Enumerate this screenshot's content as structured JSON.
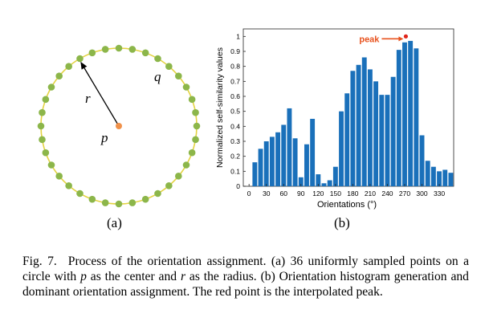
{
  "figure_a": {
    "label": "(a)",
    "center_label": "p",
    "radius_label": "r",
    "circle_label": "q",
    "num_points": 36,
    "colors": {
      "circle": "#e3d341",
      "points": "#8cb64a",
      "center": "#f0914a",
      "arrow": "#000000"
    }
  },
  "figure_b": {
    "label": "(b)",
    "annotation": "peak",
    "annotation_color": "#e8531f",
    "peak_point_color": "#e0251b",
    "peak_x": 272,
    "peak_y": 1.0
  },
  "chart_data": {
    "type": "bar",
    "xlabel": "Orientations (°)",
    "ylabel": "Normalized self-similarity values",
    "xlim": [
      -10,
      355
    ],
    "ylim": [
      0,
      1.05
    ],
    "x_ticks": [
      0,
      30,
      60,
      90,
      120,
      150,
      180,
      210,
      240,
      270,
      300,
      330
    ],
    "y_ticks": [
      0,
      0.1,
      0.2,
      0.3,
      0.4,
      0.5,
      0.6,
      0.7,
      0.8,
      0.9,
      1
    ],
    "y_tick_labels": [
      "0",
      "0.1",
      "0.2",
      "0.3",
      "0.4",
      "0.5",
      "0.6",
      "0.7",
      "0.8",
      "0.9",
      "1"
    ],
    "bar_color": "#1a70ba",
    "x": [
      0,
      10,
      20,
      30,
      40,
      50,
      60,
      70,
      80,
      90,
      100,
      110,
      120,
      130,
      140,
      150,
      160,
      170,
      180,
      190,
      200,
      210,
      220,
      230,
      240,
      250,
      260,
      270,
      280,
      290,
      300,
      310,
      320,
      330,
      340,
      350
    ],
    "values": [
      0.0,
      0.16,
      0.25,
      0.3,
      0.33,
      0.36,
      0.41,
      0.52,
      0.32,
      0.06,
      0.28,
      0.45,
      0.08,
      0.02,
      0.04,
      0.13,
      0.5,
      0.62,
      0.77,
      0.81,
      0.86,
      0.78,
      0.7,
      0.61,
      0.61,
      0.73,
      0.91,
      0.96,
      0.97,
      0.92,
      0.34,
      0.17,
      0.13,
      0.1,
      0.11,
      0.09
    ],
    "grid": false,
    "legend": "none"
  },
  "caption": {
    "fig_num": "Fig. 7.",
    "parts": [
      {
        "t": "Process of the orientation assignment. (a) 36 uniformly sampled points on a circle with ",
        "m": false
      },
      {
        "t": "p",
        "m": true
      },
      {
        "t": " as the center and ",
        "m": false
      },
      {
        "t": "r",
        "m": true
      },
      {
        "t": " as the radius. (b) Orientation histogram generation and dominant orientation assignment. The red point is the interpolated peak.",
        "m": false
      }
    ]
  }
}
